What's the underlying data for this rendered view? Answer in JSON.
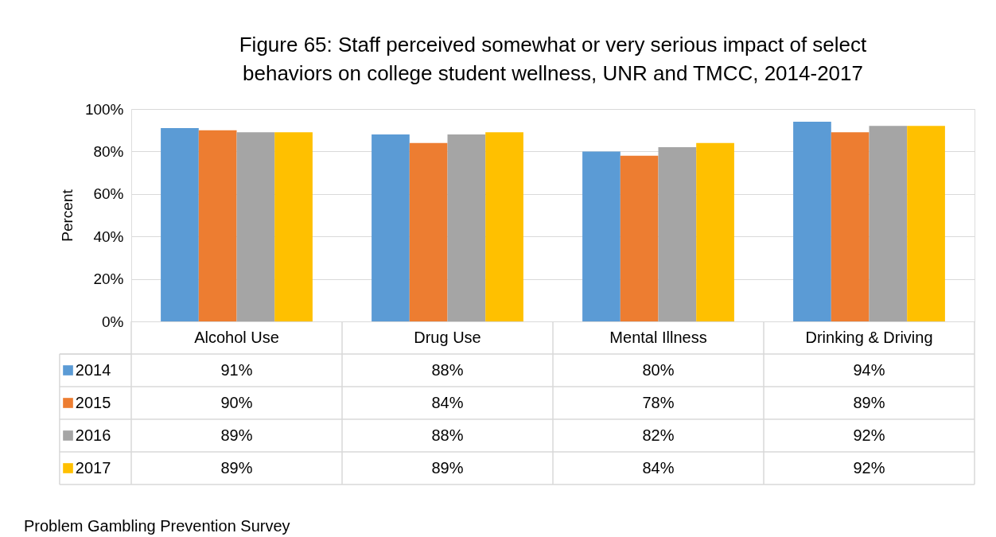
{
  "chart_data": {
    "type": "bar",
    "title": "Figure 65: Staff perceived somewhat or very serious impact of select behaviors on college student wellness, UNR and TMCC, 2014-2017",
    "ylabel": "Percent",
    "categories": [
      "Alcohol Use",
      "Drug Use",
      "Mental Illness",
      "Drinking & Driving"
    ],
    "series": [
      {
        "name": "2014",
        "color": "#5b9bd5",
        "values": [
          91,
          88,
          80,
          94
        ],
        "value_labels": [
          "91%",
          "88%",
          "80%",
          "94%"
        ]
      },
      {
        "name": "2015",
        "color": "#ed7d31",
        "values": [
          90,
          84,
          78,
          89
        ],
        "value_labels": [
          "90%",
          "84%",
          "78%",
          "89%"
        ]
      },
      {
        "name": "2016",
        "color": "#a5a5a5",
        "values": [
          89,
          88,
          82,
          92
        ],
        "value_labels": [
          "89%",
          "88%",
          "82%",
          "92%"
        ]
      },
      {
        "name": "2017",
        "color": "#ffc000",
        "values": [
          89,
          89,
          84,
          92
        ],
        "value_labels": [
          "89%",
          "89%",
          "84%",
          "92%"
        ]
      }
    ],
    "ylim": [
      0,
      100
    ],
    "yticks": [
      {
        "value": 0,
        "label": "0%"
      },
      {
        "value": 20,
        "label": "20%"
      },
      {
        "value": 40,
        "label": "40%"
      },
      {
        "value": 60,
        "label": "60%"
      },
      {
        "value": 80,
        "label": "80%"
      },
      {
        "value": 100,
        "label": "100%"
      }
    ],
    "grid": "y",
    "legend": "bottom left",
    "annotations": [
      "Problem Gambling Prevention Survey"
    ]
  }
}
